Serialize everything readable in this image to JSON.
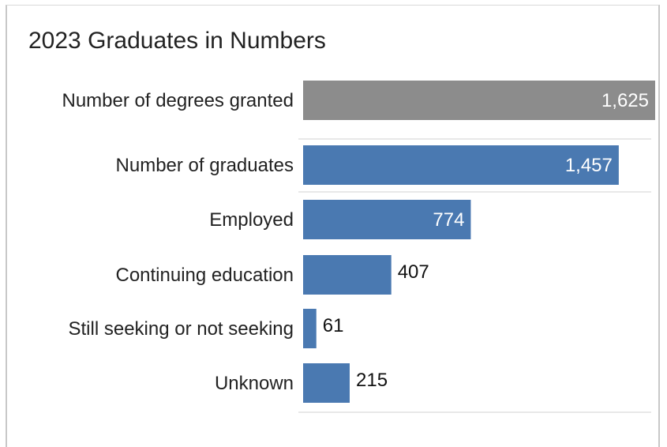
{
  "chart_data": {
    "type": "bar",
    "orientation": "horizontal",
    "title": "2023 Graduates in Numbers",
    "categories": [
      "Number of degrees granted",
      "Number of graduates",
      "Employed",
      "Continuing education",
      "Still seeking or not seeking",
      "Unknown"
    ],
    "values": [
      1625,
      1457,
      774,
      407,
      61,
      215
    ],
    "value_labels": [
      "1,625",
      "1,457",
      "774",
      "407",
      "61",
      "215"
    ],
    "bar_colors": [
      "#8c8c8c",
      "#4a79b1",
      "#4a79b1",
      "#4a79b1",
      "#4a79b1",
      "#4a79b1"
    ],
    "xlim": [
      0,
      1625
    ],
    "grid": false,
    "legend": "none"
  }
}
